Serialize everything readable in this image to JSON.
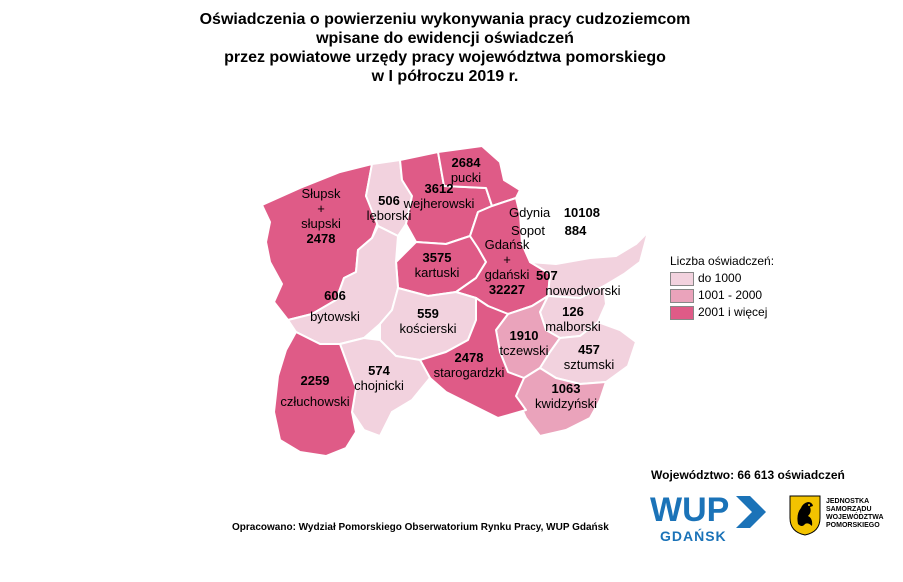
{
  "title": {
    "line1": "Oświadczenia o powierzeniu wykonywania pracy cudzoziemcom",
    "line2": "wpisane do ewidencji oświadczeń",
    "line3": "przez powiatowe urzędy pracy województwa pomorskiego",
    "line4": "w I półroczu 2019 r."
  },
  "colors": {
    "low": "#f2d2de",
    "mid": "#eaa3bb",
    "high": "#df5b87"
  },
  "districts": {
    "slupsk": {
      "value": "2478",
      "name_a": "Słupsk",
      "name_b": "+",
      "name_c": "słupski",
      "class": "high"
    },
    "lebork": {
      "value": "506",
      "name": "lęborski",
      "class": "low"
    },
    "wejherowo": {
      "value": "3612",
      "name": "wejherowski",
      "class": "high"
    },
    "puck": {
      "value": "2684",
      "name": "pucki",
      "class": "high"
    },
    "kartuzy": {
      "value": "3575",
      "name": "kartuski",
      "class": "high"
    },
    "gdansk": {
      "value": "32227",
      "name_a": "Gdańsk",
      "name_b": "+",
      "name_c": "gdański",
      "class": "high"
    },
    "nowydwor": {
      "value": "507",
      "name": "nowodworski",
      "class": "low"
    },
    "bytow": {
      "value": "606",
      "name": "bytowski",
      "class": "low"
    },
    "koscierzyna": {
      "value": "559",
      "name": "kościerski",
      "class": "low"
    },
    "malbork": {
      "value": "126",
      "name": "malborski",
      "class": "low"
    },
    "tczew": {
      "value": "1910",
      "name": "tczewski",
      "class": "mid"
    },
    "sztum": {
      "value": "457",
      "name": "sztumski",
      "class": "low"
    },
    "czluchow": {
      "value": "2259",
      "name": "człuchowski",
      "class": "high"
    },
    "chojnice": {
      "value": "574",
      "name": "chojnicki",
      "class": "low"
    },
    "starogard": {
      "value": "2478",
      "name": "starogardzki",
      "class": "high"
    },
    "kwidzyn": {
      "value": "1063",
      "name": "kwidzyński",
      "class": "mid"
    }
  },
  "cities": {
    "gdynia": {
      "name": "Gdynia",
      "value": "10108"
    },
    "sopot": {
      "name": "Sopot",
      "value": "884"
    }
  },
  "legend": {
    "title": "Liczba oświadczeń:",
    "items": [
      {
        "label": "do 1000",
        "class": "low"
      },
      {
        "label": "1001 - 2000",
        "class": "mid"
      },
      {
        "label": "2001 i więcej",
        "class": "high"
      }
    ]
  },
  "total": "Województwo: 66 613 oświadczeń",
  "source": "Opracowano: Wydział Pomorskiego Obserwatorium Rynku Pracy, WUP Gdańsk",
  "logo_wup": {
    "main": "WUP",
    "sub": "GDAŃSK"
  },
  "logo_crest": {
    "line1": "JEDNOSTKA",
    "line2": "SAMORZĄDU",
    "line3": "WOJEWÓDZTWA",
    "line4": "POMORSKIEGO"
  }
}
